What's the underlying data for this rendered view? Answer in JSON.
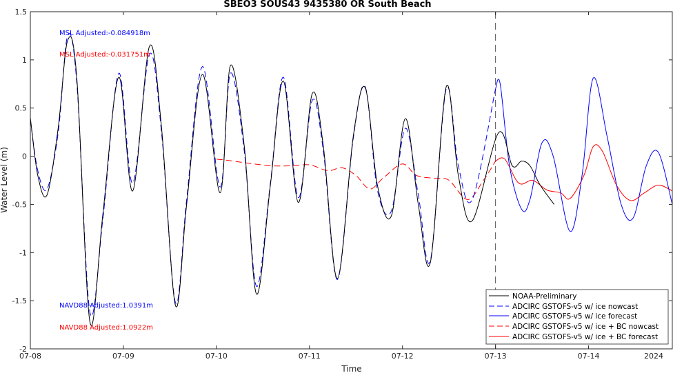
{
  "chart_data": {
    "type": "line",
    "title": "SBEO3 SOUS43 9435380 OR South Beach",
    "xlabel": "Time",
    "ylabel": "Water Level (m)",
    "year_label": "2024",
    "x_ticks": [
      "07-08",
      "07-09",
      "07-10",
      "07-11",
      "07-12",
      "07-13",
      "07-14"
    ],
    "x_range_days": [
      0,
      6.9
    ],
    "ylim": [
      -2,
      1.5
    ],
    "y_ticks": [
      "-2",
      "-1.5",
      "-1",
      "-0.5",
      "0",
      "0.5",
      "1",
      "1.5"
    ],
    "y_tick_values": [
      -2,
      -1.5,
      -1,
      -0.5,
      0,
      0.5,
      1,
      1.5
    ],
    "nowcast_forecast_boundary_day": 5.0,
    "grid": false,
    "legend_position": "bottom-right",
    "annotations": [
      {
        "text": "MSL Adjusted:-0.084918m",
        "color": "#0000ff"
      },
      {
        "text": "MSL Adjusted:-0.031751m",
        "color": "#ff0000"
      },
      {
        "text": "NAVD88 Adjusted:1.0391m",
        "color": "#0000ff"
      },
      {
        "text": "NAVD88 Adjusted:1.0922m",
        "color": "#ff0000"
      }
    ],
    "series": [
      {
        "name": "NOAA-Preliminary",
        "color": "#000000",
        "dash": "solid",
        "x": [
          0,
          0.08,
          0.18,
          0.3,
          0.4,
          0.5,
          0.64,
          0.78,
          0.95,
          1.1,
          1.28,
          1.41,
          1.56,
          1.68,
          1.85,
          2.04,
          2.15,
          2.3,
          2.43,
          2.58,
          2.72,
          2.88,
          3.03,
          3.15,
          3.3,
          3.47,
          3.6,
          3.73,
          3.88,
          4.03,
          4.17,
          4.3,
          4.47,
          4.6,
          4.75,
          5.03,
          5.18,
          5.28,
          5.37,
          5.48,
          5.63
        ],
        "y": [
          0.4,
          -0.2,
          -0.4,
          0.3,
          1.2,
          0.8,
          -1.72,
          -0.6,
          0.82,
          -0.36,
          1.14,
          0.3,
          -1.55,
          -0.5,
          0.85,
          -0.38,
          0.94,
          0.1,
          -1.43,
          -0.3,
          0.78,
          -0.48,
          0.65,
          0.1,
          -1.27,
          0.2,
          0.71,
          -0.3,
          -0.62,
          0.39,
          -0.5,
          -1.1,
          0.72,
          -0.2,
          -0.67,
          0.24,
          -0.1,
          -0.05,
          -0.1,
          -0.3,
          -0.5
        ]
      },
      {
        "name": "ADCIRC GSTOFS-v5 w/ ice nowcast",
        "color": "#0000ff",
        "dash": "dashed",
        "x": [
          0,
          0.08,
          0.18,
          0.3,
          0.4,
          0.5,
          0.64,
          0.78,
          0.95,
          1.1,
          1.28,
          1.41,
          1.56,
          1.68,
          1.85,
          2.04,
          2.15,
          2.3,
          2.43,
          2.58,
          2.72,
          2.88,
          3.03,
          3.15,
          3.3,
          3.47,
          3.6,
          3.73,
          3.88,
          4.03,
          4.17,
          4.3,
          4.47,
          4.6,
          4.75,
          5.0
        ],
        "y": [
          0.38,
          -0.15,
          -0.34,
          0.25,
          1.25,
          0.75,
          -1.62,
          -0.65,
          0.86,
          -0.28,
          1.06,
          0.25,
          -1.52,
          -0.45,
          0.93,
          -0.32,
          0.86,
          0.05,
          -1.35,
          -0.28,
          0.82,
          -0.43,
          0.58,
          0.05,
          -1.28,
          0.18,
          0.72,
          -0.35,
          -0.57,
          0.29,
          -0.4,
          -1.08,
          0.7,
          -0.1,
          -0.45,
          0.7
        ]
      },
      {
        "name": "ADCIRC GSTOFS-v5 w/ ice forecast",
        "color": "#0000ff",
        "dash": "solid",
        "x": [
          5.0,
          5.05,
          5.15,
          5.28,
          5.37,
          5.5,
          5.62,
          5.8,
          5.93,
          6.05,
          6.2,
          6.35,
          6.48,
          6.62,
          6.75,
          6.9
        ],
        "y": [
          0.7,
          0.75,
          -0.1,
          -0.55,
          -0.45,
          0.14,
          0.0,
          -0.78,
          -0.2,
          0.81,
          0.2,
          -0.5,
          -0.64,
          -0.1,
          0.04,
          -0.5
        ]
      },
      {
        "name": "ADCIRC GSTOFS-v5 w/ ice + BC nowcast",
        "color": "#ff0000",
        "dash": "dashed",
        "x": [
          2.0,
          2.1,
          2.25,
          2.4,
          2.6,
          2.8,
          3.0,
          3.2,
          3.35,
          3.5,
          3.65,
          3.8,
          4.0,
          4.15,
          4.35,
          4.5,
          4.7,
          4.87,
          5.0
        ],
        "y": [
          -0.03,
          -0.04,
          -0.06,
          -0.08,
          -0.1,
          -0.1,
          -0.09,
          -0.15,
          -0.12,
          -0.2,
          -0.34,
          -0.22,
          -0.08,
          -0.2,
          -0.23,
          -0.25,
          -0.45,
          -0.25,
          -0.05
        ]
      },
      {
        "name": "ADCIRC GSTOFS-v5 w/ ice + BC forecast",
        "color": "#ff0000",
        "dash": "solid",
        "x": [
          5.0,
          5.1,
          5.25,
          5.4,
          5.55,
          5.7,
          5.8,
          5.95,
          6.05,
          6.15,
          6.3,
          6.45,
          6.6,
          6.75,
          6.9
        ],
        "y": [
          -0.05,
          -0.03,
          -0.28,
          -0.25,
          -0.35,
          -0.38,
          -0.44,
          -0.2,
          0.1,
          0.05,
          -0.3,
          -0.46,
          -0.38,
          -0.3,
          -0.36
        ]
      }
    ]
  }
}
